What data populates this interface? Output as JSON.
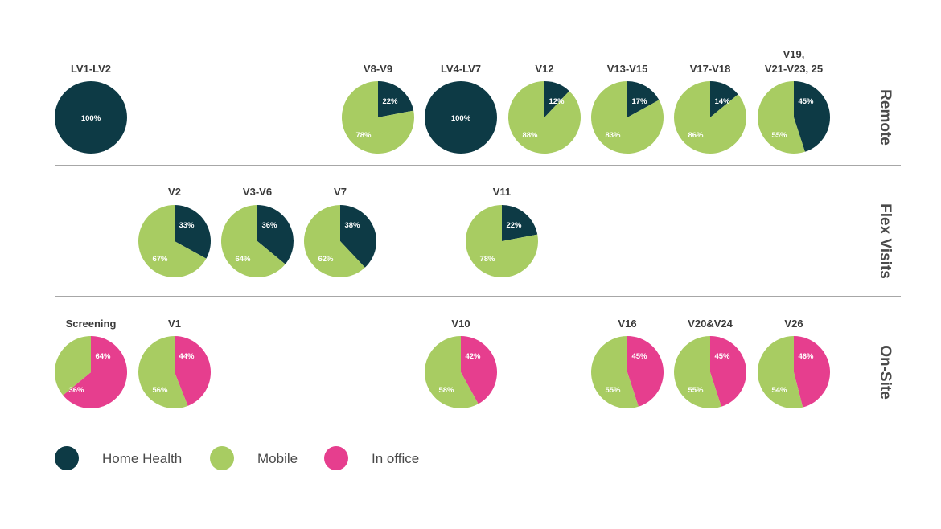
{
  "colors": {
    "home_health": "#0d3a45",
    "mobile": "#a8cc62",
    "in_office": "#e63e8e",
    "divider": "#8a8a8a",
    "title_text": "#3a3a3a",
    "label_text": "#ffffff"
  },
  "legend": [
    {
      "key": "home_health",
      "label": "Home Health",
      "color": "#0d3a45"
    },
    {
      "key": "mobile",
      "label": "Mobile",
      "color": "#a8cc62"
    },
    {
      "key": "in_office",
      "label": "In office",
      "color": "#e63e8e"
    }
  ],
  "chart_data": {
    "type": "pie",
    "rows": [
      {
        "row_label": "Remote",
        "pies": [
          {
            "title": [
              "LV1-LV2"
            ],
            "slices": [
              {
                "series": "home_health",
                "value": 100,
                "label": "100%"
              }
            ]
          },
          {
            "title": [
              "V8-V9"
            ],
            "slices": [
              {
                "series": "home_health",
                "value": 22,
                "label": "22%"
              },
              {
                "series": "mobile",
                "value": 78,
                "label": "78%"
              }
            ]
          },
          {
            "title": [
              "LV4-LV7"
            ],
            "slices": [
              {
                "series": "home_health",
                "value": 100,
                "label": "100%"
              }
            ]
          },
          {
            "title": [
              "V12"
            ],
            "slices": [
              {
                "series": "home_health",
                "value": 12,
                "label": "12%"
              },
              {
                "series": "mobile",
                "value": 88,
                "label": "88%"
              }
            ]
          },
          {
            "title": [
              "V13-V15"
            ],
            "slices": [
              {
                "series": "home_health",
                "value": 17,
                "label": "17%"
              },
              {
                "series": "mobile",
                "value": 83,
                "label": "83%"
              }
            ]
          },
          {
            "title": [
              "V17-V18"
            ],
            "slices": [
              {
                "series": "home_health",
                "value": 14,
                "label": "14%"
              },
              {
                "series": "mobile",
                "value": 86,
                "label": "86%"
              }
            ]
          },
          {
            "title": [
              "V19,",
              "V21-V23, 25"
            ],
            "slices": [
              {
                "series": "home_health",
                "value": 45,
                "label": "45%"
              },
              {
                "series": "mobile",
                "value": 55,
                "label": "55%"
              }
            ]
          }
        ]
      },
      {
        "row_label": "Flex Visits",
        "pies": [
          {
            "title": [
              "V2"
            ],
            "slices": [
              {
                "series": "home_health",
                "value": 33,
                "label": "33%"
              },
              {
                "series": "mobile",
                "value": 67,
                "label": "67%"
              }
            ]
          },
          {
            "title": [
              "V3-V6"
            ],
            "slices": [
              {
                "series": "home_health",
                "value": 36,
                "label": "36%"
              },
              {
                "series": "mobile",
                "value": 64,
                "label": "64%"
              }
            ]
          },
          {
            "title": [
              "V7"
            ],
            "slices": [
              {
                "series": "home_health",
                "value": 38,
                "label": "38%"
              },
              {
                "series": "mobile",
                "value": 62,
                "label": "62%"
              }
            ]
          },
          {
            "title": [
              "V11"
            ],
            "slices": [
              {
                "series": "home_health",
                "value": 22,
                "label": "22%"
              },
              {
                "series": "mobile",
                "value": 78,
                "label": "78%"
              }
            ]
          }
        ]
      },
      {
        "row_label": "On-Site",
        "pies": [
          {
            "title": [
              "Screening"
            ],
            "slices": [
              {
                "series": "in_office",
                "value": 64,
                "label": "64%"
              },
              {
                "series": "mobile",
                "value": 36,
                "label": "36%"
              }
            ]
          },
          {
            "title": [
              "V1"
            ],
            "slices": [
              {
                "series": "in_office",
                "value": 44,
                "label": "44%"
              },
              {
                "series": "mobile",
                "value": 56,
                "label": "56%"
              }
            ]
          },
          {
            "title": [
              "V10"
            ],
            "slices": [
              {
                "series": "in_office",
                "value": 42,
                "label": "42%"
              },
              {
                "series": "mobile",
                "value": 58,
                "label": "58%"
              }
            ]
          },
          {
            "title": [
              "V16"
            ],
            "slices": [
              {
                "series": "in_office",
                "value": 45,
                "label": "45%"
              },
              {
                "series": "mobile",
                "value": 55,
                "label": "55%"
              }
            ]
          },
          {
            "title": [
              "V20&V24"
            ],
            "slices": [
              {
                "series": "in_office",
                "value": 45,
                "label": "45%"
              },
              {
                "series": "mobile",
                "value": 55,
                "label": "55%"
              }
            ]
          },
          {
            "title": [
              "V26"
            ],
            "slices": [
              {
                "series": "in_office",
                "value": 46,
                "label": "46%"
              },
              {
                "series": "mobile",
                "value": 54,
                "label": "54%"
              }
            ]
          }
        ]
      }
    ]
  }
}
